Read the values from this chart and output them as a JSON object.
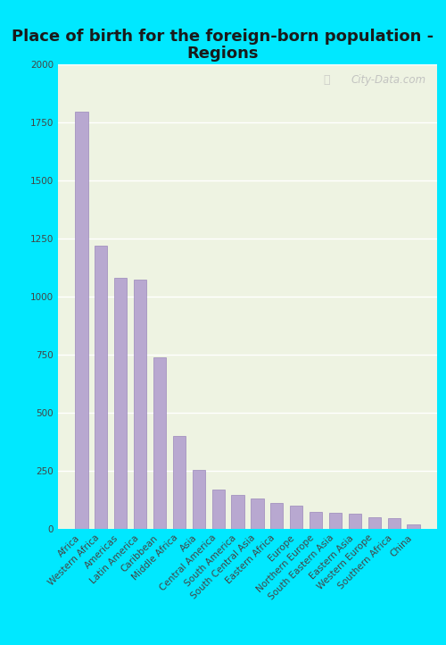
{
  "title_line1": "Place of birth for the foreign-born population -",
  "title_line2": "Regions",
  "categories": [
    "Africa",
    "Western Africa",
    "Americas",
    "Latin America",
    "Caribbean",
    "Middle Africa",
    "Asia",
    "Central America",
    "South America",
    "South Central Asia",
    "Eastern Africa",
    "Europe",
    "Northern Europe",
    "South Eastern Asia",
    "Eastern Asia",
    "Western Europe",
    "Southern Africa",
    "China"
  ],
  "values": [
    1795,
    1220,
    1080,
    1075,
    740,
    400,
    255,
    170,
    145,
    130,
    110,
    100,
    72,
    68,
    65,
    50,
    45,
    20
  ],
  "bar_color": "#b8a8d0",
  "bar_edge_color": "#9a88bb",
  "ylim": [
    0,
    2000
  ],
  "yticks": [
    0,
    250,
    500,
    750,
    1000,
    1250,
    1500,
    1750,
    2000
  ],
  "background_color_plot": "#eef3e2",
  "background_color_fig": "#00e8ff",
  "grid_color": "#ffffff",
  "title_fontsize": 13,
  "tick_fontsize": 7.5,
  "watermark_text": "City-Data.com"
}
